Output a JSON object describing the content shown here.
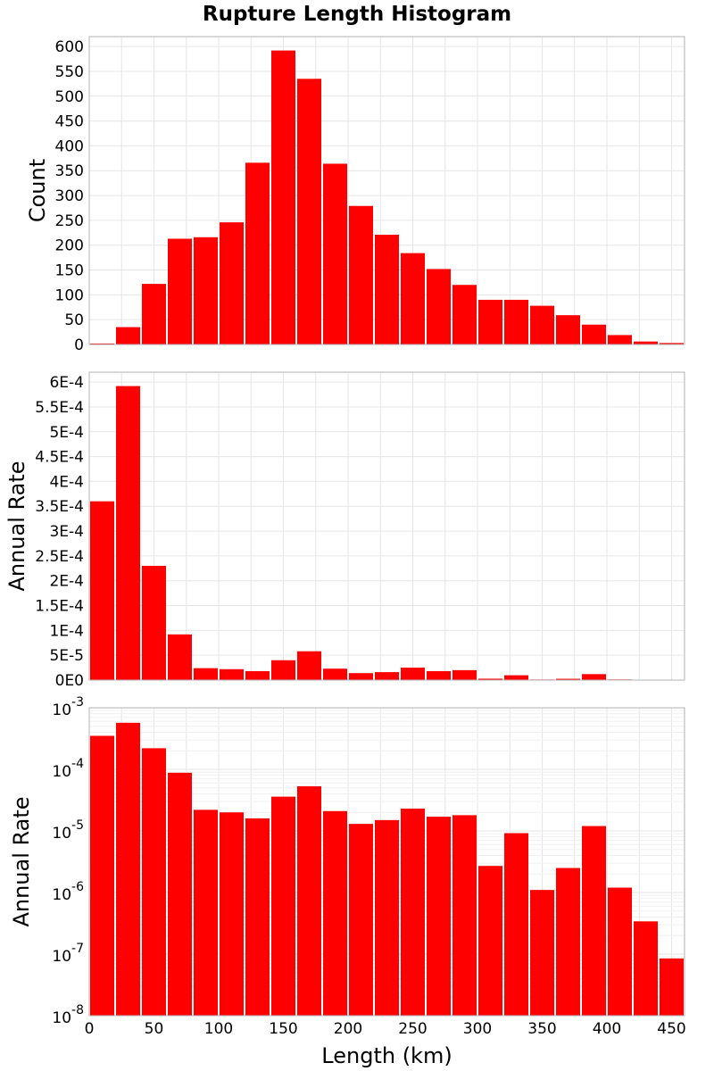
{
  "chart_data": [
    {
      "type": "bar",
      "title": "Rupture Length Histogram",
      "ylabel": "Count",
      "xlim": [
        0,
        460
      ],
      "ylim": [
        0,
        620
      ],
      "yticks": [
        0,
        50,
        100,
        150,
        200,
        250,
        300,
        350,
        400,
        450,
        500,
        550,
        600
      ],
      "ytick_labels": [
        "0",
        "50",
        "100",
        "150",
        "200",
        "250",
        "300",
        "350",
        "400",
        "450",
        "500",
        "550",
        "600"
      ],
      "bin_width": 20,
      "bin_centers": [
        10,
        30,
        50,
        70,
        90,
        110,
        130,
        150,
        170,
        190,
        210,
        230,
        250,
        270,
        290,
        310,
        330,
        350,
        370,
        390,
        410,
        430,
        450
      ],
      "values": [
        2,
        35,
        122,
        213,
        216,
        246,
        366,
        592,
        535,
        364,
        279,
        221,
        184,
        152,
        120,
        90,
        90,
        78,
        59,
        40,
        19,
        6,
        3
      ],
      "color": "#ff0000",
      "grid": true
    },
    {
      "type": "bar",
      "ylabel": "Annual Rate",
      "xlim": [
        0,
        460
      ],
      "ylim": [
        0,
        0.00062
      ],
      "yticks": [
        0,
        5e-05,
        0.0001,
        0.00015,
        0.0002,
        0.00025,
        0.0003,
        0.00035,
        0.0004,
        0.00045,
        0.0005,
        0.00055,
        0.0006
      ],
      "ytick_labels": [
        "0E0",
        "5E-5",
        "1E-4",
        "1.5E-4",
        "2E-4",
        "2.5E-4",
        "3E-4",
        "3.5E-4",
        "4E-4",
        "4.5E-4",
        "5E-4",
        "5.5E-4",
        "6E-4"
      ],
      "bin_width": 20,
      "bin_centers": [
        10,
        30,
        50,
        70,
        90,
        110,
        130,
        150,
        170,
        190,
        210,
        230,
        250,
        270,
        290,
        310,
        330,
        350,
        370,
        390,
        410,
        430,
        450
      ],
      "values": [
        0.00036,
        0.000592,
        0.00023,
        9.2e-05,
        2.4e-05,
        2.2e-05,
        1.8e-05,
        4e-05,
        5.8e-05,
        2.3e-05,
        1.4e-05,
        1.6e-05,
        2.5e-05,
        1.8e-05,
        2e-05,
        2.8e-06,
        9.7e-06,
        1.2e-06,
        2.6e-06,
        1.2e-05,
        1.3e-06,
        3.5e-07,
        9e-08
      ],
      "color": "#ff0000",
      "grid": true
    },
    {
      "type": "bar",
      "ylabel": "Annual Rate",
      "xlabel": "Length (km)",
      "yscale": "log",
      "xlim": [
        0,
        460
      ],
      "ylim": [
        1e-08,
        0.001
      ],
      "xticks": [
        0,
        50,
        100,
        150,
        200,
        250,
        300,
        350,
        400,
        450
      ],
      "xtick_labels": [
        "0",
        "50",
        "100",
        "150",
        "200",
        "250",
        "300",
        "350",
        "400",
        "450"
      ],
      "yticks_exp": [
        -8,
        -7,
        -6,
        -5,
        -4,
        -3
      ],
      "ytick_base": "10",
      "ytick_exponents": [
        "-8",
        "-7",
        "-6",
        "-5",
        "-4",
        "-3"
      ],
      "bin_width": 20,
      "bin_centers": [
        10,
        30,
        50,
        70,
        90,
        110,
        130,
        150,
        170,
        190,
        210,
        230,
        250,
        270,
        290,
        310,
        330,
        350,
        370,
        390,
        410,
        430,
        450
      ],
      "values": [
        0.00035,
        0.00057,
        0.00022,
        8.8e-05,
        2.2e-05,
        2e-05,
        1.6e-05,
        3.6e-05,
        5.3e-05,
        2.1e-05,
        1.3e-05,
        1.5e-05,
        2.3e-05,
        1.7e-05,
        1.8e-05,
        2.7e-06,
        9.2e-06,
        1.1e-06,
        2.5e-06,
        1.2e-05,
        1.2e-06,
        3.4e-07,
        8.5e-08
      ],
      "color": "#ff0000",
      "grid": true
    }
  ]
}
